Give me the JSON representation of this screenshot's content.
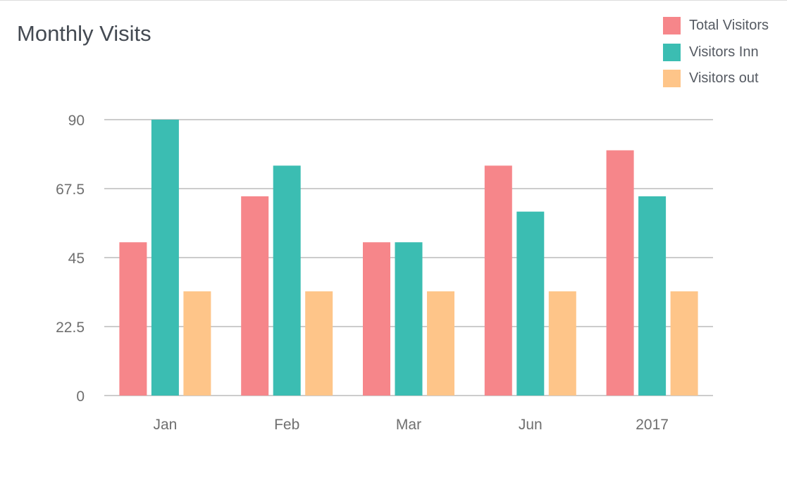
{
  "title": "Monthly Visits",
  "colors": {
    "total": "#f6868a",
    "inn": "#3bbdb2",
    "out": "#fec589",
    "grid": "#9a9a9a",
    "text": "#6f6f6f"
  },
  "chart_data": {
    "type": "bar",
    "title": "Monthly Visits",
    "categories": [
      "Jan",
      "Feb",
      "Mar",
      "Jun",
      "2017"
    ],
    "series": [
      {
        "name": "Total Visitors",
        "color": "#f6868a",
        "values": [
          50,
          65,
          50,
          75,
          80
        ]
      },
      {
        "name": "Visitors Inn",
        "color": "#3bbdb2",
        "values": [
          90,
          75,
          50,
          60,
          65
        ]
      },
      {
        "name": "Visitors out",
        "color": "#fec589",
        "values": [
          34,
          34,
          34,
          34,
          34
        ]
      }
    ],
    "yticks": [
      "0",
      "22.5",
      "45",
      "67.5",
      "90"
    ],
    "ylim": [
      0,
      90
    ],
    "grid": true,
    "legend_position": "top-right",
    "xlabel": "",
    "ylabel": ""
  }
}
